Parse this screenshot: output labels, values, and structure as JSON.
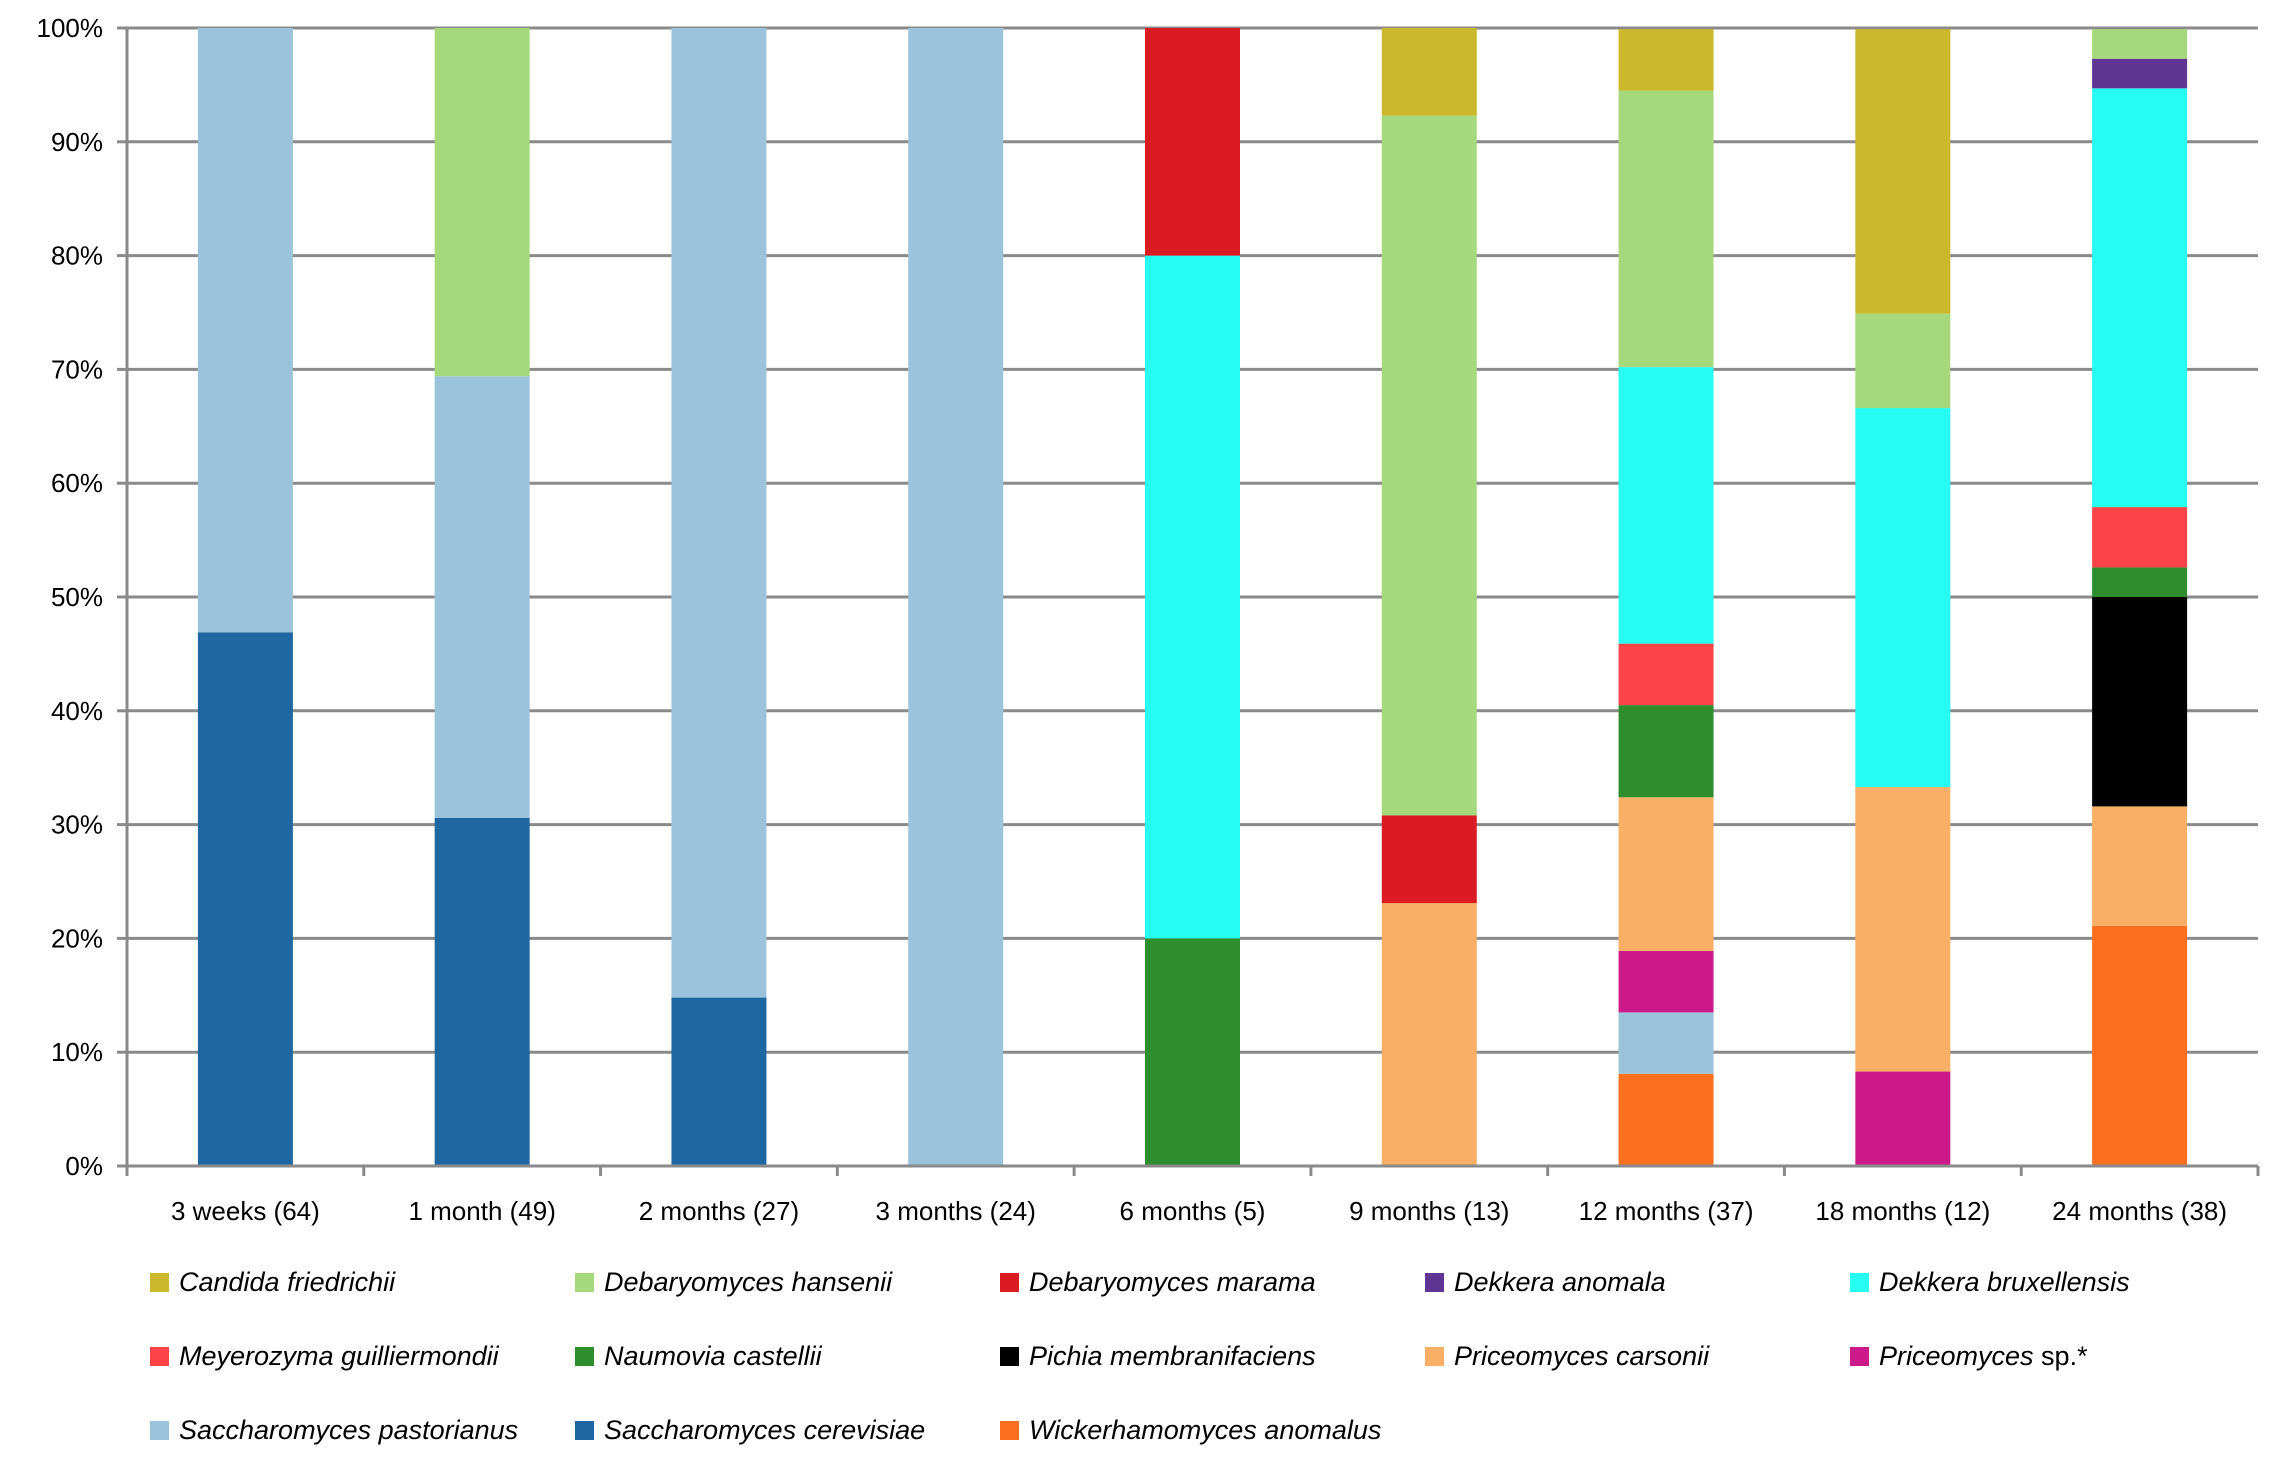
{
  "chart_data": {
    "type": "bar",
    "stacked": "percent",
    "categories": [
      "3 weeks (64)",
      "1 month (49)",
      "2 months (27)",
      "3 months (24)",
      "6 months (5)",
      "9 months (13)",
      "12 months (37)",
      "18 months (12)",
      "24 months (38)"
    ],
    "ylim": [
      0,
      100
    ],
    "yticks": [
      "0%",
      "10%",
      "20%",
      "30%",
      "40%",
      "50%",
      "60%",
      "70%",
      "80%",
      "90%",
      "100%"
    ],
    "grid": true,
    "legend_position": "bottom",
    "series": [
      {
        "name": "Wickerhamomyces anomalus",
        "color": "#fc6f1e",
        "values": [
          0,
          0,
          0,
          0,
          0,
          0,
          8.1,
          0,
          21.1
        ]
      },
      {
        "name": "Saccharomyces cerevisiae",
        "color": "#1f67a3",
        "values": [
          46.9,
          30.6,
          14.8,
          0,
          0,
          0,
          0,
          0,
          0
        ]
      },
      {
        "name": "Saccharomyces pastorianus",
        "color": "#9bc4dc",
        "values": [
          53.1,
          38.8,
          85.2,
          100,
          0,
          0,
          5.4,
          0,
          0
        ]
      },
      {
        "name": "Priceomyces sp.*",
        "color": "#cc1a8a",
        "values": [
          0,
          0,
          0,
          0,
          0,
          0,
          5.4,
          8.3,
          0
        ]
      },
      {
        "name": "Priceomyces carsonii",
        "color": "#f9b066",
        "values": [
          0,
          0,
          0,
          0,
          0,
          23.1,
          13.5,
          25.0,
          10.5
        ]
      },
      {
        "name": "Pichia membranifaciens",
        "color": "#000000",
        "values": [
          0,
          0,
          0,
          0,
          0,
          0,
          0,
          0,
          18.4
        ]
      },
      {
        "name": "Naumovia castellii",
        "color": "#2e8d2c",
        "values": [
          0,
          0,
          0,
          0,
          20,
          0,
          8.1,
          0,
          2.6
        ]
      },
      {
        "name": "Meyerozyma guilliermondii",
        "color": "#fb4348",
        "values": [
          0,
          0,
          0,
          0,
          0,
          0,
          5.4,
          0,
          5.3
        ]
      },
      {
        "name": "Dekkera bruxellensis",
        "color": "#26fcf2",
        "values": [
          0,
          0,
          0,
          0,
          60,
          0,
          24.3,
          33.3,
          36.8
        ]
      },
      {
        "name": "Dekkera anomala",
        "color": "#5f3492",
        "values": [
          0,
          0,
          0,
          0,
          0,
          0,
          0,
          0,
          2.6
        ]
      },
      {
        "name": "Debaryomyces marama",
        "color": "#da1c22",
        "values": [
          0,
          0,
          0,
          0,
          20,
          7.7,
          0,
          0,
          0
        ]
      },
      {
        "name": "Debaryomyces hansenii",
        "color": "#a6d97c",
        "values": [
          0,
          30.6,
          0,
          0,
          0,
          61.5,
          24.3,
          8.3,
          2.6
        ]
      },
      {
        "name": "Candida friedrichii",
        "color": "#cbb82b",
        "values": [
          0,
          0,
          0,
          0,
          0,
          7.7,
          5.4,
          25.0,
          0
        ]
      }
    ],
    "legend": [
      {
        "italic": "Candida friedrichii",
        "suffix": "",
        "color": "#cbb82b"
      },
      {
        "italic": "Debaryomyces hansenii",
        "suffix": "",
        "color": "#a6d97c"
      },
      {
        "italic": "Debaryomyces marama",
        "suffix": "",
        "color": "#da1c22"
      },
      {
        "italic": "Dekkera anomala",
        "suffix": "",
        "color": "#5f3492"
      },
      {
        "italic": "Dekkera bruxellensis",
        "suffix": "",
        "color": "#26fcf2"
      },
      {
        "italic": "Meyerozyma guilliermondii",
        "suffix": "",
        "color": "#fb4348"
      },
      {
        "italic": "Naumovia castellii",
        "suffix": "",
        "color": "#2e8d2c"
      },
      {
        "italic": "Pichia membranifaciens",
        "suffix": "",
        "color": "#000000"
      },
      {
        "italic": "Priceomyces carsonii",
        "suffix": "",
        "color": "#f9b066"
      },
      {
        "italic": "Priceomyces",
        "suffix": " sp.*",
        "color": "#cc1a8a"
      },
      {
        "italic": "Saccharomyces pastorianus",
        "suffix": "",
        "color": "#9bc4dc"
      },
      {
        "italic": "Saccharomyces cerevisiae",
        "suffix": "",
        "color": "#1f67a3"
      },
      {
        "italic": "Wickerhamomyces anomalus",
        "suffix": "",
        "color": "#fc6f1e"
      }
    ]
  }
}
